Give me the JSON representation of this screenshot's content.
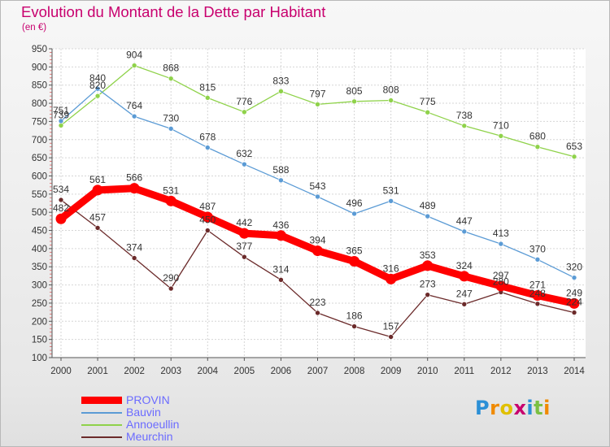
{
  "chart_data": {
    "type": "line",
    "title": "Evolution du Montant de la Dette par Habitant",
    "subtitle": "(en €)",
    "x": [
      "2000",
      "2001",
      "2002",
      "2003",
      "2004",
      "2005",
      "2006",
      "2007",
      "2008",
      "2009",
      "2010",
      "2011",
      "2012",
      "2013",
      "2014"
    ],
    "ylim": [
      100,
      950
    ],
    "yticks": [
      100,
      150,
      200,
      250,
      300,
      350,
      400,
      450,
      500,
      550,
      600,
      650,
      700,
      750,
      800,
      850,
      900,
      950
    ],
    "grid": true,
    "legend_position": "bottom-left",
    "series": [
      {
        "name": "Annoeullin",
        "color": "#8fd24a",
        "values": [
          739,
          820,
          904,
          868,
          815,
          776,
          833,
          797,
          805,
          808,
          775,
          738,
          710,
          680,
          653
        ]
      },
      {
        "name": "Bauvin",
        "color": "#5b9bd5",
        "values": [
          751,
          840,
          764,
          730,
          678,
          632,
          588,
          543,
          496,
          531,
          489,
          447,
          413,
          370,
          320
        ]
      },
      {
        "name": "Meurchin",
        "color": "#6b2a2a",
        "values": [
          534,
          457,
          374,
          290,
          450,
          377,
          314,
          223,
          186,
          157,
          273,
          247,
          280,
          248,
          224
        ]
      },
      {
        "name": "PROVIN",
        "color": "#ff0000",
        "values": [
          482,
          561,
          566,
          531,
          487,
          442,
          436,
          394,
          365,
          316,
          353,
          324,
          297,
          271,
          249
        ]
      }
    ]
  },
  "legend": [
    {
      "label": "PROVIN",
      "color": "#ff0000",
      "text_color": "#6b6bff"
    },
    {
      "label": "Bauvin",
      "color": "#5b9bd5",
      "text_color": "#6b6bff"
    },
    {
      "label": "Annoeullin",
      "color": "#8fd24a",
      "text_color": "#6b6bff"
    },
    {
      "label": "Meurchin",
      "color": "#6b2a2a",
      "text_color": "#6b6bff"
    }
  ],
  "brand": {
    "letters": [
      "P",
      "r",
      "o",
      "x",
      "i",
      "t",
      "i"
    ],
    "colors": [
      "#2b8fd6",
      "#f08a00",
      "#e0c000",
      "#c8006e",
      "#2b8fd6",
      "#7bc043",
      "#f08a00"
    ]
  }
}
